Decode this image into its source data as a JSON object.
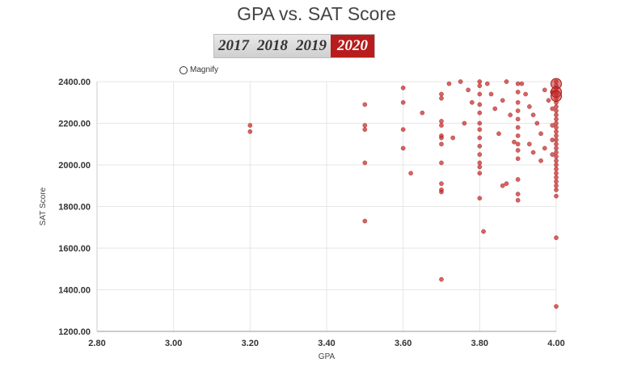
{
  "title": "GPA vs. SAT Score",
  "year_tabs": [
    {
      "label": "2017",
      "active": false
    },
    {
      "label": "2018",
      "active": false
    },
    {
      "label": "2019",
      "active": false
    },
    {
      "label": "2020",
      "active": true
    }
  ],
  "magnify_label": "Magnify",
  "colors": {
    "point": "#c62828",
    "active_tab": "#b81c1c",
    "grid": "#e6e6e6"
  },
  "chart_data": {
    "type": "scatter",
    "title": "GPA vs. SAT Score",
    "xlabel": "GPA",
    "ylabel": "SAT Score",
    "xlim": [
      2.8,
      4.0
    ],
    "ylim": [
      1200,
      2400
    ],
    "x_ticks": [
      "2.80",
      "3.00",
      "3.20",
      "3.40",
      "3.60",
      "3.80",
      "4.00"
    ],
    "y_ticks": [
      "1200.00",
      "1400.00",
      "1600.00",
      "1800.00",
      "2000.00",
      "2200.00",
      "2400.00"
    ],
    "grid": true,
    "legend": "none",
    "series": [
      {
        "points": [
          [
            3.2,
            2190
          ],
          [
            3.2,
            2160
          ],
          [
            3.5,
            2290
          ],
          [
            3.5,
            2190
          ],
          [
            3.5,
            2170
          ],
          [
            3.5,
            2010
          ],
          [
            3.5,
            1730
          ],
          [
            3.6,
            2370
          ],
          [
            3.6,
            2300
          ],
          [
            3.6,
            2170
          ],
          [
            3.6,
            2080
          ],
          [
            3.62,
            1960
          ],
          [
            3.65,
            2250
          ],
          [
            3.7,
            2340
          ],
          [
            3.7,
            2320
          ],
          [
            3.7,
            2210
          ],
          [
            3.7,
            2190
          ],
          [
            3.7,
            2140
          ],
          [
            3.7,
            2130
          ],
          [
            3.7,
            2100
          ],
          [
            3.7,
            2010
          ],
          [
            3.7,
            1910
          ],
          [
            3.7,
            1880
          ],
          [
            3.7,
            1870
          ],
          [
            3.7,
            1450
          ],
          [
            3.72,
            2390
          ],
          [
            3.73,
            2130
          ],
          [
            3.75,
            2400
          ],
          [
            3.76,
            2200
          ],
          [
            3.77,
            2360
          ],
          [
            3.78,
            2300
          ],
          [
            3.8,
            2400
          ],
          [
            3.8,
            2380
          ],
          [
            3.8,
            2340
          ],
          [
            3.8,
            2290
          ],
          [
            3.8,
            2250
          ],
          [
            3.8,
            2200
          ],
          [
            3.8,
            2170
          ],
          [
            3.8,
            2130
          ],
          [
            3.8,
            2090
          ],
          [
            3.8,
            2050
          ],
          [
            3.8,
            2010
          ],
          [
            3.8,
            1990
          ],
          [
            3.8,
            1960
          ],
          [
            3.8,
            1840
          ],
          [
            3.81,
            1680
          ],
          [
            3.82,
            2390
          ],
          [
            3.83,
            2340
          ],
          [
            3.84,
            2270
          ],
          [
            3.85,
            2150
          ],
          [
            3.86,
            2310
          ],
          [
            3.87,
            2400
          ],
          [
            3.88,
            2240
          ],
          [
            3.89,
            2110
          ],
          [
            3.86,
            1900
          ],
          [
            3.87,
            1910
          ],
          [
            3.9,
            2390
          ],
          [
            3.9,
            2350
          ],
          [
            3.9,
            2300
          ],
          [
            3.9,
            2260
          ],
          [
            3.9,
            2220
          ],
          [
            3.9,
            2180
          ],
          [
            3.9,
            2140
          ],
          [
            3.9,
            2100
          ],
          [
            3.9,
            2070
          ],
          [
            3.9,
            2030
          ],
          [
            3.9,
            1930
          ],
          [
            3.9,
            1860
          ],
          [
            3.9,
            1830
          ],
          [
            3.91,
            2390
          ],
          [
            3.92,
            2340
          ],
          [
            3.93,
            2280
          ],
          [
            3.94,
            2240
          ],
          [
            3.95,
            2200
          ],
          [
            3.96,
            2150
          ],
          [
            3.97,
            2360
          ],
          [
            3.98,
            2310
          ],
          [
            3.93,
            2100
          ],
          [
            3.94,
            2060
          ],
          [
            3.96,
            2020
          ],
          [
            3.97,
            2080
          ],
          [
            3.99,
            2350
          ],
          [
            3.99,
            2270
          ],
          [
            3.99,
            2190
          ],
          [
            3.99,
            2120
          ],
          [
            3.99,
            2050
          ],
          [
            4.0,
            2400
          ],
          [
            4.0,
            2380
          ],
          [
            4.0,
            2360
          ],
          [
            4.0,
            2340
          ],
          [
            4.0,
            2320
          ],
          [
            4.0,
            2300
          ],
          [
            4.0,
            2280
          ],
          [
            4.0,
            2260
          ],
          [
            4.0,
            2240
          ],
          [
            4.0,
            2220
          ],
          [
            4.0,
            2200
          ],
          [
            4.0,
            2180
          ],
          [
            4.0,
            2160
          ],
          [
            4.0,
            2140
          ],
          [
            4.0,
            2120
          ],
          [
            4.0,
            2100
          ],
          [
            4.0,
            2080
          ],
          [
            4.0,
            2060
          ],
          [
            4.0,
            2040
          ],
          [
            4.0,
            2020
          ],
          [
            4.0,
            2000
          ],
          [
            4.0,
            1980
          ],
          [
            4.0,
            1960
          ],
          [
            4.0,
            1940
          ],
          [
            4.0,
            1920
          ],
          [
            4.0,
            1900
          ],
          [
            4.0,
            1880
          ],
          [
            4.0,
            1850
          ],
          [
            4.0,
            1650
          ],
          [
            4.0,
            1320
          ]
        ]
      }
    ],
    "highlight_points": [
      [
        4.0,
        2390
      ],
      [
        4.0,
        2350
      ],
      [
        4.0,
        2330
      ]
    ]
  }
}
